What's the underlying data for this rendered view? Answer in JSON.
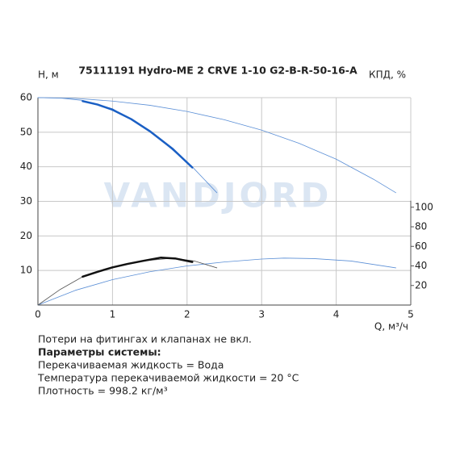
{
  "chart_data": {
    "type": "line",
    "title": "75111191 Hydro-ME 2 CRVE 1-10 G2-B-R-50-16-A",
    "y_label": "H, м",
    "y2_label": "КПД, %",
    "x_label": "Q, м³/ч",
    "watermark": "VANDJORD",
    "xlim": [
      0,
      5
    ],
    "xticks": [
      0,
      1,
      2,
      3,
      4,
      5
    ],
    "ylim": [
      0,
      60
    ],
    "yticks": [
      10,
      20,
      30,
      40,
      50,
      60
    ],
    "y2lim": [
      0,
      212
    ],
    "y2ticks": [
      20,
      40,
      60,
      80,
      100
    ],
    "grid": true,
    "series": [
      {
        "color": "#5b8fd6",
        "line_width": 0.8,
        "axis": "y",
        "x": [
          0,
          0.5,
          1,
          1.5,
          2,
          2.5,
          3,
          3.5,
          4,
          4.5,
          4.8
        ],
        "values": [
          60,
          59.8,
          59,
          57.8,
          56,
          53.6,
          50.6,
          46.8,
          42.2,
          36.4,
          32.5
        ]
      },
      {
        "color": "#5b8fd6",
        "line_width": 0.8,
        "axis": "y",
        "x": [
          0,
          0.3,
          0.6,
          1,
          1.5,
          2.07,
          2.4
        ],
        "values": [
          60,
          59.9,
          59.2,
          56.8,
          50.5,
          40,
          32.5
        ]
      },
      {
        "color": "#1a5fc4",
        "line_width": 2.5,
        "axis": "y",
        "x": [
          0.6,
          0.8,
          1,
          1.25,
          1.5,
          1.8,
          2.07
        ],
        "values": [
          59,
          58,
          56.5,
          53.8,
          50.3,
          45.3,
          39.8
        ]
      },
      {
        "color": "#5b8fd6",
        "line_width": 0.8,
        "axis": "y2",
        "x": [
          0,
          0.5,
          1,
          1.5,
          2,
          2.5,
          3,
          3.3,
          3.7,
          4.2,
          4.8
        ],
        "values": [
          0,
          15,
          26,
          34,
          40,
          44,
          47,
          48,
          47.5,
          45,
          38
        ]
      },
      {
        "color": "#555555",
        "line_width": 0.8,
        "axis": "y2",
        "x": [
          0,
          0.3,
          0.6,
          1,
          1.4,
          1.8,
          2.1,
          2.4
        ],
        "values": [
          0,
          16,
          29,
          39,
          45,
          48,
          45,
          38
        ]
      },
      {
        "color": "#111111",
        "line_width": 2.5,
        "axis": "y2",
        "x": [
          0.6,
          0.8,
          1,
          1.2,
          1.4,
          1.65,
          1.85,
          2.07
        ],
        "values": [
          29,
          34,
          38.5,
          42,
          45,
          48.5,
          47.5,
          44
        ]
      }
    ]
  },
  "notes": [
    "Потери на фитингах и клапанах не вкл.",
    "Параметры системы:",
    "Перекачиваемая жидкость = Вода",
    "Температура перекачиваемой жидкости = 20 °C",
    "Плотность = 998.2 кг/м³"
  ]
}
